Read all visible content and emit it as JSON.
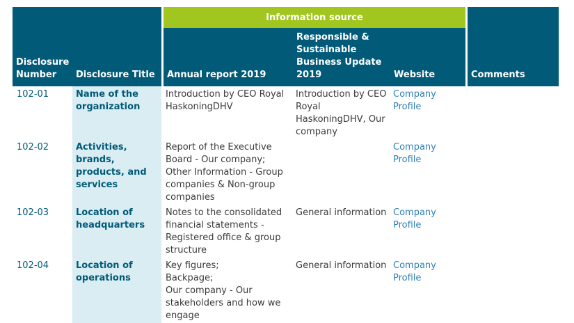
{
  "header": {
    "group_label": "Information source",
    "col_number": "Disclosure Number",
    "col_title": "Disclosure Title",
    "col_annual": "Annual report 2019",
    "col_responsible": "Responsible & Sustainable Business Update 2019",
    "col_website": "Website",
    "col_comments": "Comments"
  },
  "rows": [
    {
      "number": "102-01",
      "title": "Name of the organization",
      "annual": "Introduction by CEO Royal HaskoningDHV",
      "responsible": "Introduction by CEO Royal HaskoningDHV, Our company",
      "website": "Company Profile"
    },
    {
      "number": "102-02",
      "title": "Activities, brands, products, and services",
      "annual": "Report of the Executive Board - Our company; Other Information - Group companies & Non-group companies",
      "responsible": "",
      "website": "Company Profile"
    },
    {
      "number": "102-03",
      "title": "Location of headquarters",
      "annual": "Notes to the consolidated financial statements - Registered office & group structure",
      "responsible": "General information",
      "website": "Company Profile"
    },
    {
      "number": "102-04",
      "title": "Location of operations",
      "annual": "Key figures;\nBackpage;\nOur company - Our stakeholders and how we engage",
      "responsible": "General information",
      "website": "Company Profile"
    }
  ],
  "colors": {
    "header_bg": "#005a78",
    "banner_bg": "#a1c61f",
    "title_col_bg": "#d9edf2",
    "link": "#2f80b5"
  }
}
